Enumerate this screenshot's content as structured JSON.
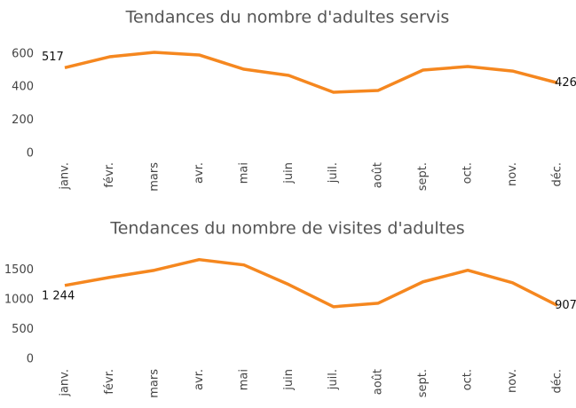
{
  "chart_data": [
    {
      "type": "line",
      "title": "Tendances du nombre d'adultes servis",
      "categories": [
        "janv.",
        "févr.",
        "mars",
        "avr.",
        "mai",
        "juin",
        "juil.",
        "août",
        "sept.",
        "oct.",
        "nov.",
        "déc."
      ],
      "series": [
        {
          "color": "#f5871f",
          "values": [
            517,
            583,
            610,
            594,
            508,
            471,
            369,
            380,
            503,
            524,
            497,
            426
          ],
          "value_labels": [
            "517",
            null,
            null,
            null,
            null,
            null,
            null,
            null,
            null,
            null,
            null,
            "426"
          ]
        }
      ],
      "ylim": [
        0,
        650
      ],
      "yticks": [
        0,
        200,
        400,
        600
      ]
    },
    {
      "type": "line",
      "title": "Tendances du nombre de visites d'adultes",
      "categories": [
        "janv.",
        "févr.",
        "mars",
        "avr.",
        "mai",
        "juin",
        "juil.",
        "août",
        "sept.",
        "oct.",
        "nov.",
        "déc."
      ],
      "series": [
        {
          "color": "#f5871f",
          "values": [
            1244,
            1380,
            1500,
            1680,
            1590,
            1260,
            885,
            945,
            1305,
            1500,
            1290,
            907
          ],
          "value_labels": [
            "1 244",
            null,
            null,
            null,
            null,
            null,
            null,
            null,
            null,
            null,
            null,
            "907"
          ]
        }
      ],
      "ylim": [
        0,
        1750
      ],
      "yticks": [
        0,
        500,
        1000,
        1500
      ]
    }
  ]
}
